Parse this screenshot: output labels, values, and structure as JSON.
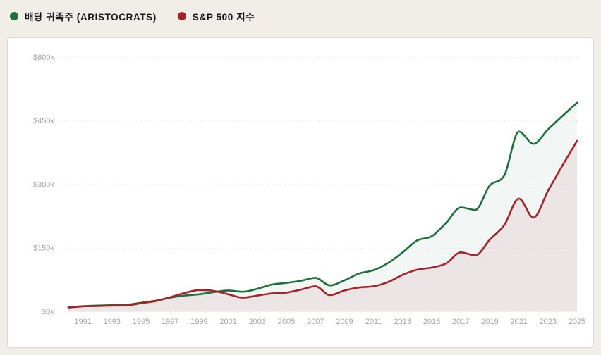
{
  "legend": [
    {
      "label": "배당 귀족주 (ARISTOCRATS)",
      "color": "#1d6f3c"
    },
    {
      "label": "S&P 500 지수",
      "color": "#a22328"
    }
  ],
  "chart_data": {
    "type": "area",
    "title": "",
    "xlabel": "",
    "ylabel": "",
    "unit": "USD thousands",
    "x": [
      1990,
      1991,
      1992,
      1993,
      1994,
      1995,
      1996,
      1997,
      1998,
      1999,
      2000,
      2001,
      2002,
      2003,
      2004,
      2005,
      2006,
      2007,
      2008,
      2009,
      2010,
      2011,
      2012,
      2013,
      2014,
      2015,
      2016,
      2017,
      2018,
      2019,
      2020,
      2021,
      2022,
      2023,
      2024,
      2025
    ],
    "series": [
      {
        "name": "배당 귀족주 (ARISTOCRATS)",
        "color": "#1d6f3c",
        "fill": "rgba(34,107,63,0.06)",
        "values": [
          10,
          13,
          14.5,
          15.5,
          16.5,
          21,
          26,
          33,
          38,
          41,
          46,
          50,
          47,
          54,
          64,
          68,
          73,
          80,
          62,
          74,
          90,
          98,
          115,
          140,
          168,
          178,
          210,
          246,
          240,
          298,
          322,
          425,
          396,
          430,
          462,
          493
        ]
      },
      {
        "name": "S&P 500 지수",
        "color": "#a22328",
        "fill": "rgba(162,35,40,0.07)",
        "values": [
          10,
          12.5,
          13.5,
          14.5,
          15,
          20,
          25,
          34,
          44,
          51,
          49,
          41,
          33,
          38,
          43,
          45,
          52,
          60,
          39,
          50,
          57,
          60,
          70,
          87,
          99,
          104,
          114,
          140,
          133,
          170,
          205,
          267,
          222,
          285,
          345,
          403
        ]
      }
    ],
    "ylim": [
      0,
      600
    ],
    "yticks": [
      {
        "value": 600,
        "label": "$600k"
      },
      {
        "value": 450,
        "label": "$450k"
      },
      {
        "value": 300,
        "label": "$300k"
      },
      {
        "value": 150,
        "label": "$150k"
      },
      {
        "value": 0,
        "label": "$0k"
      }
    ],
    "xticks": [
      1991,
      1993,
      1995,
      1997,
      1999,
      2001,
      2003,
      2005,
      2007,
      2009,
      2011,
      2013,
      2015,
      2017,
      2019,
      2021,
      2023,
      2025
    ],
    "grid": "horizontal-dashed",
    "legend_position": "top-left"
  }
}
